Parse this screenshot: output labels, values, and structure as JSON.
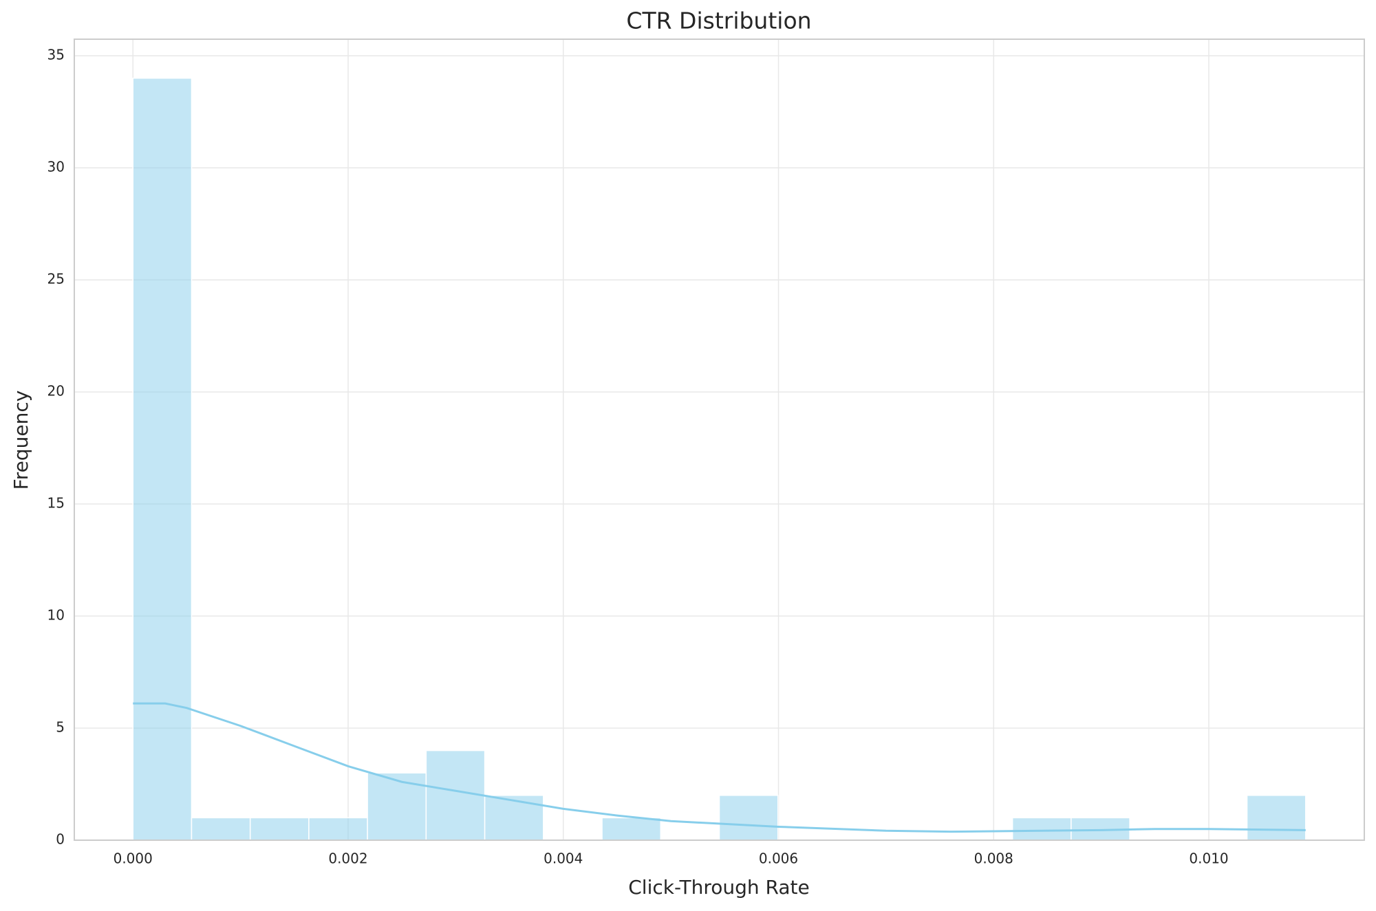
{
  "chart_data": {
    "type": "histogram",
    "title": "CTR Distribution",
    "xlabel": "Click-Through Rate",
    "ylabel": "Frequency",
    "bins": [
      0,
      0.000545,
      0.00109,
      0.001635,
      0.00218,
      0.002725,
      0.00327,
      0.003815,
      0.00436,
      0.004905,
      0.00545,
      0.005995,
      0.00654,
      0.007085,
      0.00763,
      0.008175,
      0.00872,
      0.009265,
      0.00981,
      0.010355,
      0.0109
    ],
    "counts": [
      34,
      1,
      1,
      1,
      3,
      4,
      2,
      0,
      1,
      0,
      2,
      0,
      0,
      0,
      0,
      1,
      1,
      0,
      0,
      2
    ],
    "color": "#87ceeb",
    "kde": {
      "color": "#87ceeb",
      "x": [
        0,
        0.0003,
        0.0005,
        0.001,
        0.0015,
        0.002,
        0.0025,
        0.003,
        0.0035,
        0.004,
        0.0045,
        0.005,
        0.006,
        0.007,
        0.0076,
        0.008,
        0.009,
        0.0095,
        0.01,
        0.0109
      ],
      "y": [
        6.1,
        6.1,
        5.9,
        5.1,
        4.2,
        3.3,
        2.6,
        2.2,
        1.8,
        1.4,
        1.1,
        0.85,
        0.6,
        0.42,
        0.38,
        0.4,
        0.45,
        0.5,
        0.5,
        0.45
      ]
    },
    "xlim": [
      -0.000545,
      0.011445
    ],
    "ylim": [
      0,
      35.74
    ],
    "xticks": [
      {
        "value": 0,
        "label": "0.000"
      },
      {
        "value": 0.002,
        "label": "0.002"
      },
      {
        "value": 0.004,
        "label": "0.004"
      },
      {
        "value": 0.006,
        "label": "0.006"
      },
      {
        "value": 0.008,
        "label": "0.008"
      },
      {
        "value": 0.01,
        "label": "0.010"
      }
    ],
    "yticks": [
      0,
      5,
      10,
      15,
      20,
      25,
      30,
      35
    ],
    "grid": true
  }
}
